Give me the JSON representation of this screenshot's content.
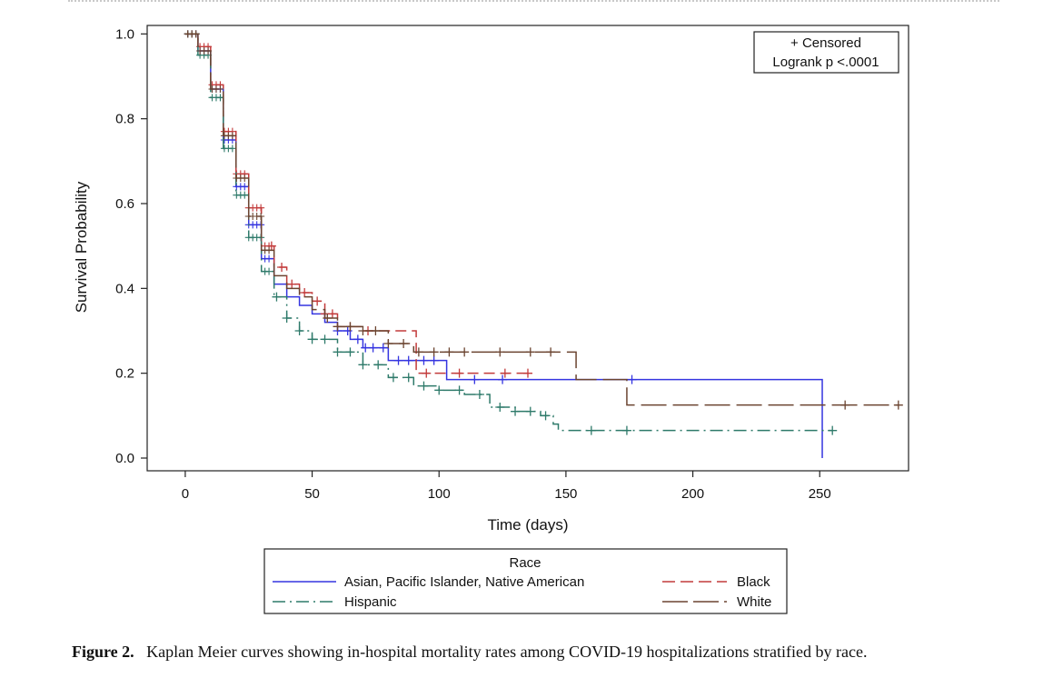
{
  "caption": {
    "label": "Figure 2.",
    "text": "Kaplan Meier curves showing in-hospital mortality rates among COVID-19 hospitalizations stratified by race."
  },
  "chart_data": {
    "type": "line",
    "xlabel": "Time (days)",
    "ylabel": "Survival Probability",
    "xlim": [
      -15,
      285
    ],
    "ylim": [
      -0.03,
      1.02
    ],
    "xticks": [
      "0",
      "50",
      "100",
      "150",
      "200",
      "250"
    ],
    "yticks": [
      "0.0",
      "0.2",
      "0.4",
      "0.6",
      "0.8",
      "1.0"
    ],
    "annotation": [
      "+ Censored",
      "Logrank p <.0001"
    ],
    "legend": {
      "title": "Race",
      "position": "bottom"
    },
    "series": [
      {
        "name": "Asian, Pacific Islander, Native American",
        "color": "#3535e0",
        "dash": "solid",
        "x": [
          0,
          5,
          10,
          15,
          20,
          25,
          30,
          35,
          40,
          45,
          50,
          55,
          60,
          65,
          70,
          80,
          90,
          103,
          125,
          150,
          176,
          200,
          251,
          251
        ],
        "y": [
          1.0,
          0.96,
          0.87,
          0.75,
          0.64,
          0.55,
          0.47,
          0.41,
          0.38,
          0.36,
          0.34,
          0.32,
          0.3,
          0.28,
          0.26,
          0.23,
          0.23,
          0.185,
          0.185,
          0.185,
          0.185,
          0.185,
          0.185,
          0.0
        ],
        "censored_x": [
          60,
          64,
          68,
          71,
          74,
          78,
          84,
          88,
          94,
          98,
          114,
          125,
          176
        ]
      },
      {
        "name": "Black",
        "color": "#c23a3a",
        "dash": "dashed",
        "x": [
          0,
          5,
          10,
          15,
          20,
          25,
          30,
          35,
          40,
          45,
          50,
          55,
          60,
          70,
          80,
          91,
          91,
          100,
          120,
          135
        ],
        "y": [
          1.0,
          0.97,
          0.88,
          0.77,
          0.67,
          0.59,
          0.5,
          0.45,
          0.41,
          0.39,
          0.37,
          0.34,
          0.31,
          0.3,
          0.3,
          0.3,
          0.2,
          0.2,
          0.2,
          0.2
        ],
        "censored_x": [
          34,
          38,
          42,
          47,
          52,
          55,
          58,
          65,
          72,
          95,
          108,
          126,
          135
        ]
      },
      {
        "name": "Hispanic",
        "color": "#2e7a6a",
        "dash": "dashdot",
        "x": [
          0,
          5,
          10,
          15,
          20,
          25,
          30,
          35,
          40,
          45,
          50,
          60,
          70,
          80,
          90,
          100,
          110,
          120,
          130,
          140,
          145,
          147,
          160,
          200,
          255
        ],
        "y": [
          1.0,
          0.95,
          0.85,
          0.73,
          0.62,
          0.52,
          0.44,
          0.38,
          0.33,
          0.3,
          0.28,
          0.25,
          0.22,
          0.19,
          0.17,
          0.16,
          0.15,
          0.12,
          0.11,
          0.1,
          0.08,
          0.065,
          0.065,
          0.065,
          0.065
        ],
        "censored_x": [
          36,
          40,
          45,
          50,
          55,
          60,
          65,
          70,
          76,
          82,
          88,
          94,
          100,
          108,
          116,
          124,
          130,
          136,
          142,
          160,
          174,
          255
        ]
      },
      {
        "name": "White",
        "color": "#6b4430",
        "dash": "longdash",
        "x": [
          0,
          5,
          10,
          15,
          20,
          25,
          30,
          35,
          40,
          45,
          50,
          55,
          60,
          70,
          80,
          90,
          100,
          120,
          140,
          154,
          154,
          174,
          174,
          200,
          250,
          281
        ],
        "y": [
          1.0,
          0.96,
          0.87,
          0.76,
          0.66,
          0.57,
          0.49,
          0.43,
          0.4,
          0.38,
          0.35,
          0.33,
          0.31,
          0.3,
          0.27,
          0.25,
          0.25,
          0.25,
          0.25,
          0.25,
          0.185,
          0.185,
          0.125,
          0.125,
          0.125,
          0.125
        ],
        "censored_x": [
          56,
          60,
          65,
          70,
          75,
          80,
          86,
          92,
          98,
          104,
          110,
          124,
          136,
          144,
          260,
          281
        ]
      }
    ]
  }
}
